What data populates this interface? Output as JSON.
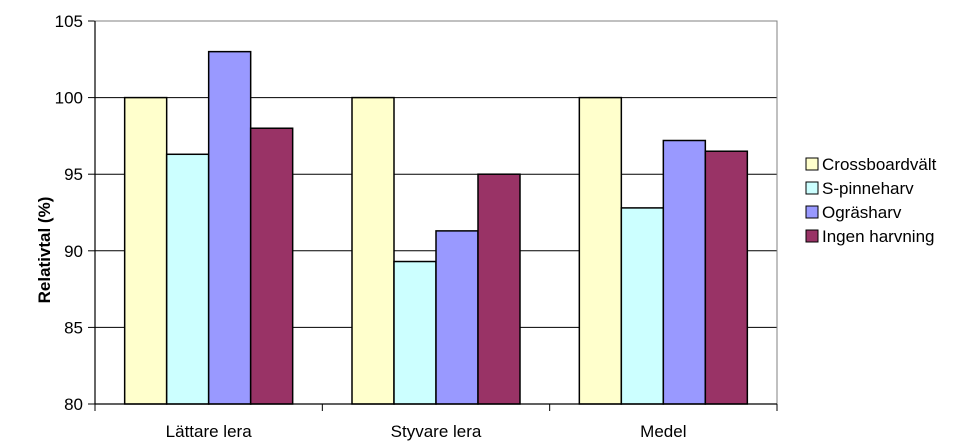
{
  "chart_data": {
    "type": "bar",
    "title": "",
    "xlabel": "",
    "ylabel": "Relativtal (%)",
    "ylim": [
      80,
      105
    ],
    "yticks": [
      80,
      85,
      90,
      95,
      100,
      105
    ],
    "grid": true,
    "legend_position": "right",
    "categories": [
      "Lättare lera",
      "Styvare lera",
      "Medel"
    ],
    "series": [
      {
        "name": "Crossboardvält",
        "color": "#ffffcc",
        "values": [
          100,
          100,
          100
        ]
      },
      {
        "name": "S-pinneharv",
        "color": "#ccffff",
        "values": [
          96.3,
          89.3,
          92.8
        ]
      },
      {
        "name": "Ogräsharv",
        "color": "#9999ff",
        "values": [
          103,
          91.3,
          97.2
        ]
      },
      {
        "name": "Ingen harvning",
        "color": "#993366",
        "values": [
          98,
          95,
          96.5
        ]
      }
    ]
  }
}
